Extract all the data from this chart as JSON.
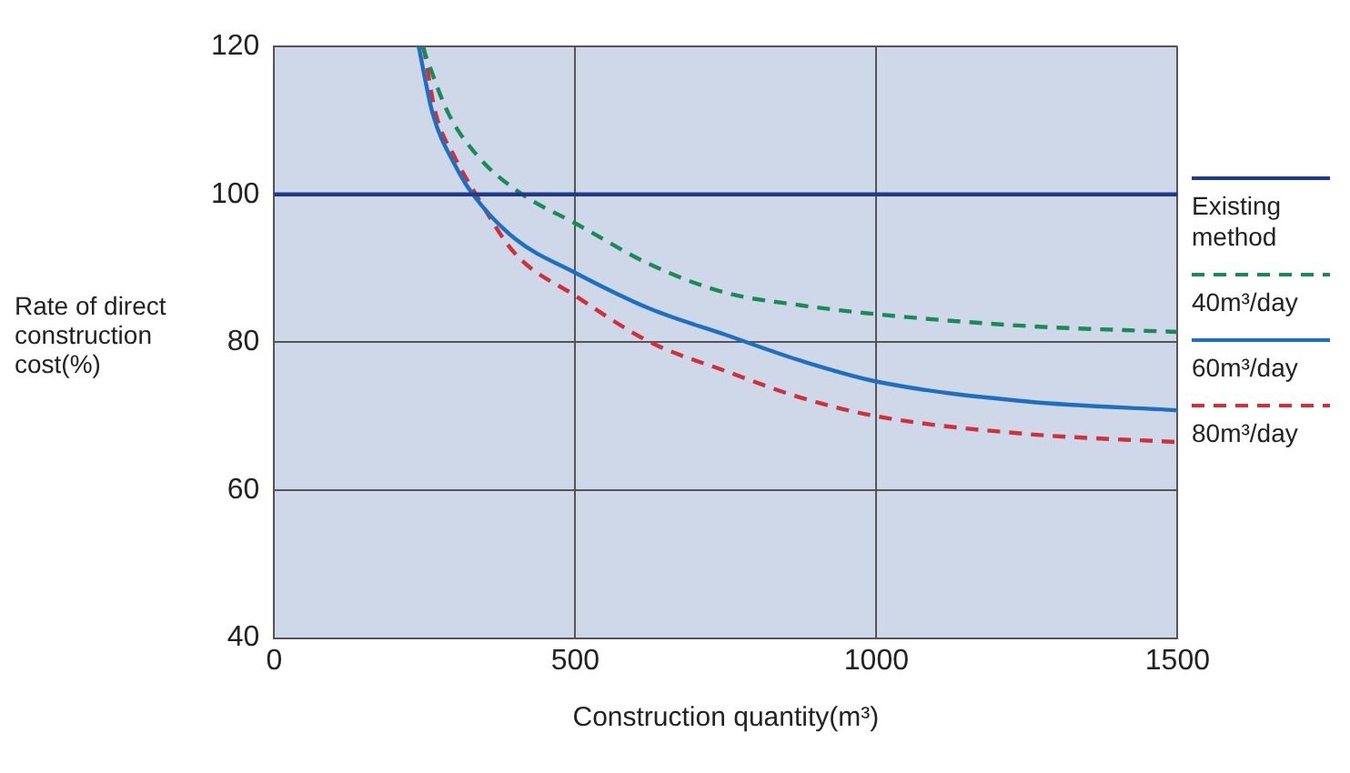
{
  "chart_data": {
    "type": "line",
    "xlabel": "Construction quantity(m³)",
    "ylabel": "Rate of direct construction cost(%)",
    "xlim": [
      0,
      1500
    ],
    "xticks": [
      0,
      500,
      1000,
      1500
    ],
    "ylim": [
      40,
      120
    ],
    "yticks": [
      40,
      60,
      80,
      100,
      120
    ],
    "grid": true,
    "legend": "right",
    "marker": "none",
    "series": [
      {
        "name": "Existing method",
        "color": "#1f3a8c",
        "line_style": "solid",
        "x": [
          0,
          1500
        ],
        "values": [
          100,
          100
        ]
      },
      {
        "name": "40m³/day",
        "color": "#1a8a5a",
        "line_style": "dashed",
        "x": [
          246,
          289,
          340,
          412,
          500,
          625,
          750,
          875,
          1000,
          1250,
          1500
        ],
        "values": [
          120,
          111,
          105,
          100,
          96.1,
          90.5,
          86.7,
          85,
          83.8,
          82.2,
          81.4
        ]
      },
      {
        "name": "60m³/day",
        "color": "#1f6fc0",
        "line_style": "solid",
        "x": [
          240,
          263,
          300,
          330,
          400,
          500,
          625,
          750,
          875,
          1000,
          1250,
          1500
        ],
        "values": [
          120,
          111,
          104,
          100,
          94,
          89.4,
          84.5,
          81,
          77.5,
          74.7,
          72,
          70.8
        ]
      },
      {
        "name": "80m³/day",
        "color": "#d0303a",
        "line_style": "dashed",
        "x": [
          248,
          268,
          300,
          335,
          400,
          500,
          625,
          750,
          875,
          1000,
          1250,
          1500
        ],
        "values": [
          120,
          111,
          105,
          100,
          92,
          86.3,
          80,
          76.1,
          72.5,
          70,
          67.6,
          66.5
        ]
      }
    ]
  }
}
